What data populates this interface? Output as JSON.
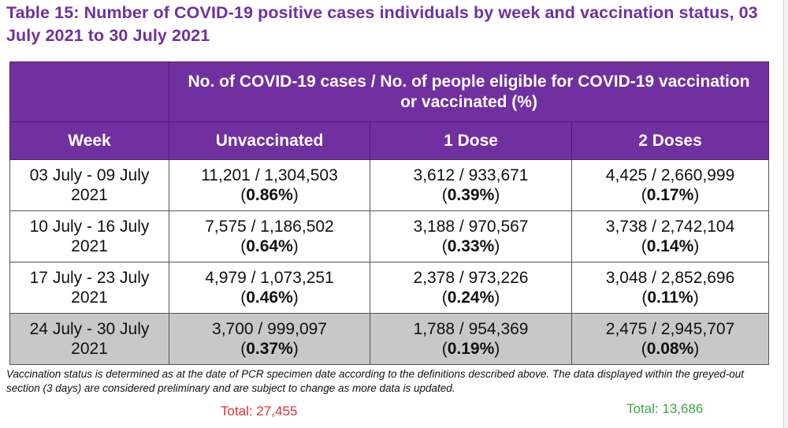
{
  "title": "Table 15: Number of COVID-19 positive cases individuals by week and vaccination status, 03 July 2021 to 30 July 2021",
  "table": {
    "group_header": "No. of COVID-19 cases / No. of people eligible for COVID-19 vaccination or vaccinated (%)",
    "columns": [
      "Week",
      "Unvaccinated",
      "1 Dose",
      "2 Doses"
    ],
    "rows": [
      {
        "week": [
          "03 July - 09 July",
          "2021"
        ],
        "unvacc": {
          "value": "11,201 / 1,304,503",
          "pct": "0.86%"
        },
        "dose1": {
          "value": "3,612 / 933,671",
          "pct": "0.39%"
        },
        "dose2": {
          "value": "4,425 / 2,660,999",
          "pct": "0.17%"
        }
      },
      {
        "week": [
          "10 July - 16 July",
          "2021"
        ],
        "unvacc": {
          "value": "7,575 / 1,186,502",
          "pct": "0.64%"
        },
        "dose1": {
          "value": "3,188 / 970,567",
          "pct": "0.33%"
        },
        "dose2": {
          "value": "3,738 / 2,742,104",
          "pct": "0.14%"
        }
      },
      {
        "week": [
          "17 July - 23 July",
          "2021"
        ],
        "unvacc": {
          "value": "4,979 / 1,073,251",
          "pct": "0.46%"
        },
        "dose1": {
          "value": "2,378 / 973,226",
          "pct": "0.24%"
        },
        "dose2": {
          "value": "3,048 / 2,852,696",
          "pct": "0.11%"
        }
      },
      {
        "week": [
          "24 July - 30 July",
          "2021"
        ],
        "unvacc": {
          "value": "3,700 / 999,097",
          "pct": "0.37%"
        },
        "dose1": {
          "value": "1,788 / 954,369",
          "pct": "0.19%"
        },
        "dose2": {
          "value": "2,475 / 2,945,707",
          "pct": "0.08%"
        }
      }
    ]
  },
  "note": "Vaccination status is determined as at the date of PCR specimen date according to the definitions described above. The data displayed within the greyed-out section (3 days) are considered preliminary and are subject to change as more data is updated.",
  "totals": {
    "unvaccinated": "Total: 27,455",
    "two_doses": "Total: 13,686"
  },
  "colors": {
    "header_purple": "#7030a0",
    "preliminary_grey": "#c8c8c8",
    "total_red": "#e03030",
    "total_green": "#3aa64a"
  }
}
